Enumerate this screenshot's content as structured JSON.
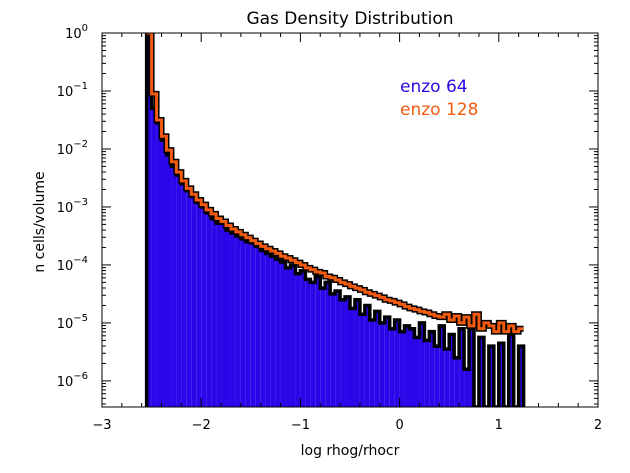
{
  "chart_data": {
    "type": "line",
    "style": "step-histogram",
    "title": "Gas Density Distribution",
    "xlabel": "log rhog/rhocr",
    "ylabel": "n cells/volume",
    "xlim": [
      -3,
      2
    ],
    "ylim_log10": [
      -6.45,
      0
    ],
    "yscale": "log",
    "x_ticks": [
      -3,
      -2,
      -1,
      0,
      1,
      2
    ],
    "x_tick_labels": [
      "−3",
      "−2",
      "−1",
      "0",
      "1",
      "2"
    ],
    "y_ticks_log10": [
      0,
      -1,
      -2,
      -3,
      -4,
      -5,
      -6
    ],
    "legend_position": "top-right (inside)",
    "grid": false,
    "series": [
      {
        "name": "enzo 64",
        "color": "#2a06e8",
        "bin_width": 0.05,
        "x": [
          -2.55,
          -2.5,
          -2.45,
          -2.4,
          -2.35,
          -2.3,
          -2.25,
          -2.2,
          -2.15,
          -2.1,
          -2.05,
          -2.0,
          -1.95,
          -1.9,
          -1.85,
          -1.8,
          -1.75,
          -1.7,
          -1.65,
          -1.6,
          -1.55,
          -1.5,
          -1.45,
          -1.4,
          -1.35,
          -1.3,
          -1.25,
          -1.2,
          -1.15,
          -1.1,
          -1.05,
          -1.0,
          -0.95,
          -0.9,
          -0.85,
          -0.8,
          -0.75,
          -0.7,
          -0.65,
          -0.6,
          -0.55,
          -0.5,
          -0.45,
          -0.4,
          -0.35,
          -0.3,
          -0.25,
          -0.2,
          -0.15,
          -0.1,
          -0.05,
          0.0,
          0.05,
          0.1,
          0.15,
          0.2,
          0.25,
          0.3,
          0.35,
          0.4,
          0.45,
          0.5,
          0.55,
          0.6,
          0.65,
          0.7,
          0.75,
          0.8,
          0.85,
          0.9,
          0.95,
          1.0,
          1.05,
          1.1,
          1.15,
          1.2
        ],
        "log10_y": [
          0.2,
          -1.3,
          -1.55,
          -1.85,
          -2.1,
          -2.3,
          -2.45,
          -2.6,
          -2.72,
          -2.82,
          -2.92,
          -3.0,
          -3.1,
          -3.2,
          -3.28,
          -3.25,
          -3.4,
          -3.45,
          -3.5,
          -3.55,
          -3.6,
          -3.62,
          -3.68,
          -3.75,
          -3.8,
          -3.85,
          -3.9,
          -3.95,
          -4.05,
          -4.0,
          -4.15,
          -4.1,
          -4.25,
          -4.3,
          -4.2,
          -4.4,
          -4.3,
          -4.5,
          -4.45,
          -4.6,
          -4.55,
          -4.75,
          -4.6,
          -4.85,
          -4.7,
          -4.95,
          -4.8,
          -5.0,
          -4.9,
          -5.1,
          -4.95,
          -5.15,
          -5.05,
          -5.1,
          -5.25,
          -5.0,
          -5.3,
          -5.15,
          -5.4,
          -5.05,
          -5.45,
          -5.2,
          -5.6,
          -5.1,
          -5.8,
          -5.1,
          -6.45,
          -5.25,
          -6.45,
          -5.4,
          -6.45,
          -5.35,
          -6.45,
          -5.2,
          -6.45,
          -5.4
        ]
      },
      {
        "name": "enzo 128",
        "color": "#f25a0f",
        "bin_width": 0.05,
        "x": [
          -2.55,
          -2.5,
          -2.45,
          -2.4,
          -2.35,
          -2.3,
          -2.25,
          -2.2,
          -2.15,
          -2.1,
          -2.05,
          -2.0,
          -1.95,
          -1.9,
          -1.85,
          -1.8,
          -1.75,
          -1.7,
          -1.65,
          -1.6,
          -1.55,
          -1.5,
          -1.45,
          -1.4,
          -1.35,
          -1.3,
          -1.25,
          -1.2,
          -1.15,
          -1.1,
          -1.05,
          -1.0,
          -0.95,
          -0.9,
          -0.85,
          -0.8,
          -0.75,
          -0.7,
          -0.65,
          -0.6,
          -0.55,
          -0.5,
          -0.45,
          -0.4,
          -0.35,
          -0.3,
          -0.25,
          -0.2,
          -0.15,
          -0.1,
          -0.05,
          0.0,
          0.05,
          0.1,
          0.15,
          0.2,
          0.25,
          0.3,
          0.35,
          0.4,
          0.45,
          0.5,
          0.55,
          0.6,
          0.65,
          0.7,
          0.75,
          0.8,
          0.85,
          0.9,
          0.95,
          1.0,
          1.05,
          1.1,
          1.15,
          1.2
        ],
        "log10_y": [
          0.2,
          -1.05,
          -1.5,
          -1.78,
          -2.02,
          -2.22,
          -2.4,
          -2.55,
          -2.68,
          -2.78,
          -2.88,
          -2.96,
          -3.05,
          -3.12,
          -3.2,
          -3.25,
          -3.32,
          -3.38,
          -3.43,
          -3.48,
          -3.53,
          -3.58,
          -3.63,
          -3.68,
          -3.72,
          -3.76,
          -3.8,
          -3.85,
          -3.88,
          -3.92,
          -3.96,
          -4.0,
          -4.05,
          -4.08,
          -4.12,
          -4.14,
          -4.2,
          -4.22,
          -4.26,
          -4.3,
          -4.33,
          -4.37,
          -4.4,
          -4.43,
          -4.47,
          -4.5,
          -4.53,
          -4.56,
          -4.6,
          -4.62,
          -4.65,
          -4.68,
          -4.72,
          -4.75,
          -4.77,
          -4.8,
          -4.82,
          -4.85,
          -4.88,
          -4.9,
          -4.85,
          -4.95,
          -4.88,
          -5.0,
          -4.9,
          -5.05,
          -4.85,
          -5.1,
          -5.0,
          -5.05,
          -5.15,
          -5.0,
          -5.15,
          -5.05,
          -5.15,
          -5.1
        ]
      }
    ]
  }
}
